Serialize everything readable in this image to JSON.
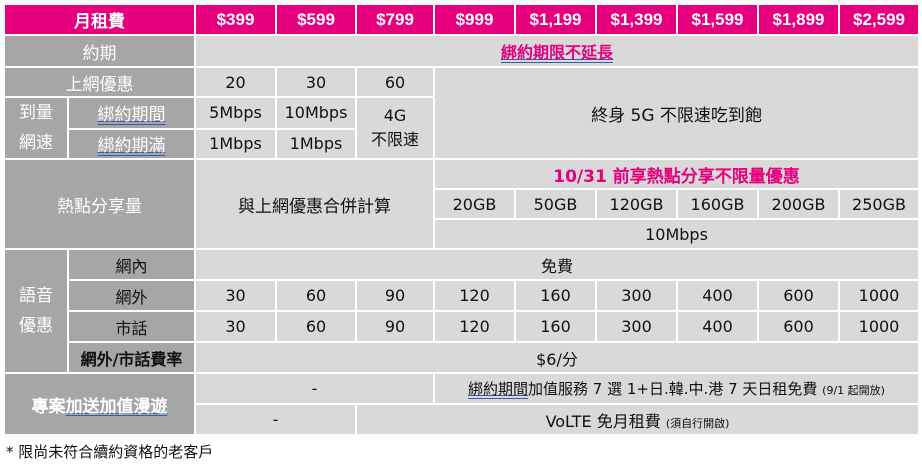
{
  "header": {
    "fee_label": "月租費",
    "prices": [
      "$399",
      "$599",
      "$799",
      "$999",
      "$1,199",
      "$1,399",
      "$1,599",
      "$1,899",
      "$2,599"
    ]
  },
  "contract": {
    "label": "約期",
    "value": "綁約期限不延長"
  },
  "data_speed": {
    "internet_label": "上網優惠",
    "internet_values": [
      "20",
      "30",
      "60"
    ],
    "group_line1": "到量",
    "group_line2": "網速",
    "during_label": "綁約期間",
    "during_values": [
      "5Mbps",
      "10Mbps"
    ],
    "after_label": "綁約期滿",
    "after_values": [
      "1Mbps",
      "1Mbps"
    ],
    "mid_line1": "4G",
    "mid_line2": "不限速",
    "unlimited_text": "終身 5G 不限速吃到飽"
  },
  "hotspot": {
    "label": "熱點分享量",
    "combined_text": "與上網優惠合併計算",
    "promo": "10/31 前享熱點分享不限量優惠",
    "values": [
      "20GB",
      "50GB",
      "120GB",
      "160GB",
      "200GB",
      "250GB"
    ],
    "speed": "10Mbps"
  },
  "voice": {
    "group_line1": "語音",
    "group_line2": "優惠",
    "onnet_label": "網內",
    "onnet_value": "免費",
    "offnet_label": "網外",
    "offnet_values": [
      "30",
      "60",
      "90",
      "120",
      "160",
      "300",
      "400",
      "600",
      "1000"
    ],
    "landline_label": "市話",
    "landline_values": [
      "30",
      "60",
      "90",
      "120",
      "160",
      "300",
      "400",
      "600",
      "1000"
    ],
    "rate_label": "網外/市話費率",
    "rate_value": "$6/分"
  },
  "addon": {
    "label_prefix": "專案",
    "label_mid1": "加送",
    "label_mid2": "加值",
    "label_suffix": "漫遊",
    "dash1": "-",
    "dash2": "-",
    "roaming_prefix": "綁約期間",
    "roaming_text": "加值服務 7 選 1+日.韓.中.港 7 天日租免費",
    "roaming_note": "(9/1 起開放)",
    "volte_text": "VoLTE 免月租費",
    "volte_note": "(須自行開啟)"
  },
  "footnote": "*  限尚未符合續約資格的老客戶"
}
